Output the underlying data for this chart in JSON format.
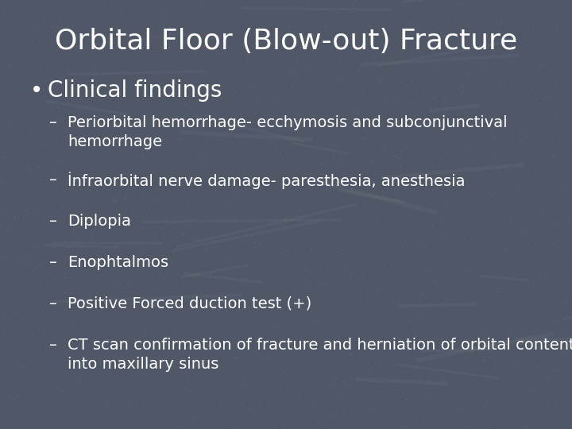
{
  "title": "Orbital Floor (Blow-out) Fracture",
  "title_fontsize": 26,
  "title_color": "#FFFFFF",
  "bg_color": "#505868",
  "bullet_text": "Clinical findings",
  "bullet_fontsize": 20,
  "bullet_color": "#FFFFFF",
  "sub_items": [
    "Periorbital hemorrhage- ecchymosis and subconjunctival\nhemorrhage",
    "İnfraorbital nerve damage- paresthesia, anesthesia",
    "Diplopia",
    "Enophtalmos",
    "Positive Forced duction test (+)",
    "CT scan confirmation of fracture and herniation of orbital contents\ninto maxillary sinus"
  ],
  "sub_fontsize": 14,
  "sub_color": "#FFFFFF",
  "dash_char": "–"
}
